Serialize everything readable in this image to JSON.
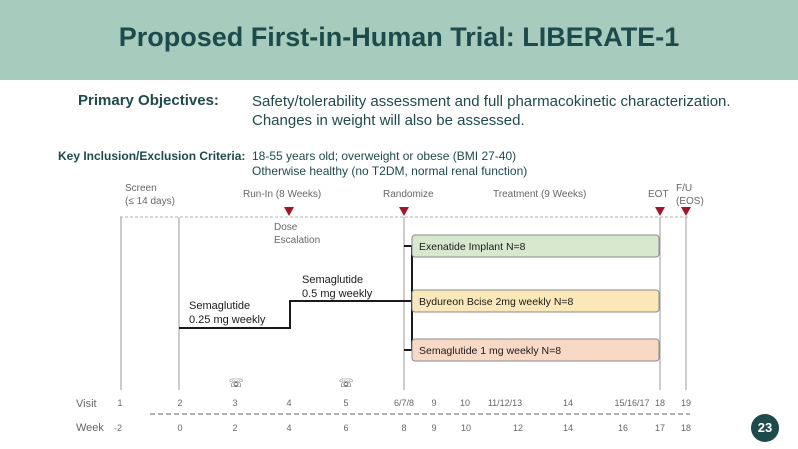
{
  "title": "Proposed First-in-Human Trial: LIBERATE-1",
  "primary_objectives": {
    "label": "Primary Objectives:",
    "line1": "Safety/tolerability assessment and full pharmacokinetic characterization.",
    "line2": "Changes in weight will also be assessed."
  },
  "criteria": {
    "label": "Key Inclusion/Exclusion Criteria:",
    "line1": "18-55 years old; overweight or obese (BMI 27-40)",
    "line2": "Otherwise healthy (no T2DM, normal renal function)"
  },
  "timeline": {
    "screen": "Screen",
    "screen_days": "(≤ 14 days)",
    "runin": "Run-In (8 Weeks)",
    "randomize": "Randomize",
    "treatment": "Treatment (9 Weeks)",
    "eot": "EOT",
    "fu": "F/U",
    "eos": "(EOS)",
    "dose1": "Dose",
    "dose2": "Escalation",
    "sema025_1": "Semaglutide",
    "sema025_2": "0.25 mg weekly",
    "sema05_1": "Semaglutide",
    "sema05_2": "0.5 mg weekly",
    "arm1": "Exenatide Implant  N=8",
    "arm2": "Bydureon Bcise 2mg weekly N=8",
    "arm3": "Semaglutide 1 mg weekly N=8",
    "arm_colors": [
      "#d8e8cf",
      "#fbe8b8",
      "#f8d9c5"
    ],
    "marker_color": "#a4142a",
    "phone_icon": "☏",
    "visit_label": "Visit",
    "week_label": "Week",
    "visits": [
      "1",
      "2",
      "3",
      "4",
      "5",
      "6/7/8",
      "9",
      "10",
      "11/12/13",
      "14",
      "15/16/17",
      "18",
      "19"
    ],
    "weeks": [
      "-2",
      "0",
      "2",
      "4",
      "6",
      "8",
      "9",
      "10",
      "12",
      "14",
      "16",
      "17",
      "18"
    ]
  },
  "page_number": "23"
}
